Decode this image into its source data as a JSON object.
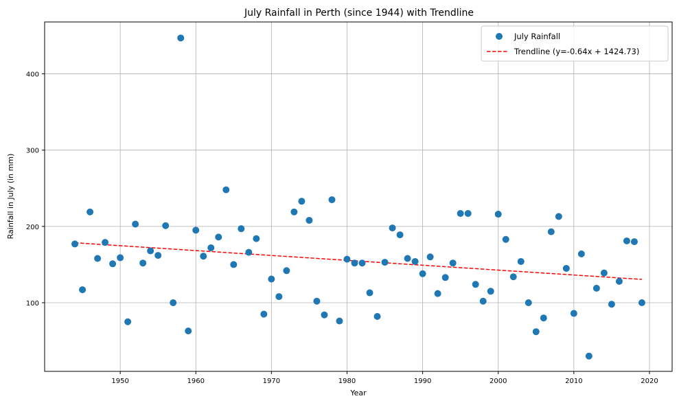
{
  "chart_data": {
    "type": "scatter",
    "title": "July Rainfall in Perth (since 1944) with Trendline",
    "xlabel": "Year",
    "ylabel": "Rainfall in July (in mm)",
    "xlim": [
      1940,
      2023
    ],
    "ylim": [
      10,
      468
    ],
    "xticks": [
      1950,
      1960,
      1970,
      1980,
      1990,
      2000,
      2010,
      2020
    ],
    "yticks": [
      100,
      200,
      300,
      400
    ],
    "grid": true,
    "legend_position": "top-right",
    "series": [
      {
        "name": "July Rainfall",
        "kind": "scatter",
        "color": "#1f77b4",
        "x": [
          1944,
          1945,
          1946,
          1947,
          1948,
          1949,
          1950,
          1951,
          1952,
          1953,
          1954,
          1955,
          1956,
          1957,
          1958,
          1959,
          1960,
          1961,
          1962,
          1963,
          1964,
          1965,
          1966,
          1967,
          1968,
          1969,
          1970,
          1971,
          1972,
          1973,
          1974,
          1975,
          1976,
          1977,
          1978,
          1979,
          1980,
          1981,
          1982,
          1983,
          1984,
          1985,
          1986,
          1987,
          1988,
          1989,
          1990,
          1991,
          1992,
          1993,
          1994,
          1995,
          1996,
          1997,
          1998,
          1999,
          2000,
          2001,
          2002,
          2003,
          2004,
          2005,
          2006,
          2007,
          2008,
          2009,
          2010,
          2011,
          2012,
          2013,
          2014,
          2015,
          2016,
          2017,
          2018,
          2019
        ],
        "y": [
          177,
          117,
          219,
          158,
          179,
          151,
          159,
          75,
          203,
          152,
          168,
          162,
          201,
          100,
          447,
          63,
          195,
          161,
          172,
          186,
          248,
          150,
          197,
          166,
          184,
          85,
          131,
          108,
          142,
          219,
          233,
          208,
          102,
          84,
          235,
          76,
          157,
          152,
          152,
          113,
          82,
          153,
          198,
          189,
          158,
          154,
          138,
          160,
          112,
          133,
          152,
          217,
          217,
          124,
          102,
          115,
          216,
          183,
          134,
          154,
          100,
          62,
          80,
          193,
          213,
          145,
          86,
          164,
          30,
          119,
          139,
          98,
          128,
          181,
          180,
          100
        ]
      },
      {
        "name": "Trendline (y=-0.64x + 1424.73)",
        "kind": "line",
        "style": "dashed",
        "color": "#ff0000",
        "x": [
          1944,
          2019
        ],
        "y": [
          178.57,
          130.57
        ]
      }
    ]
  }
}
